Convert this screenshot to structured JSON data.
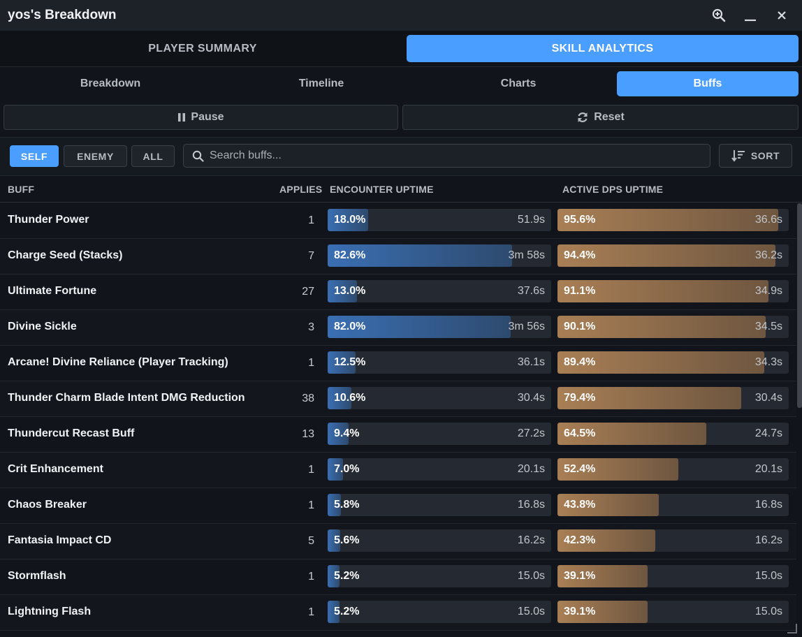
{
  "window": {
    "title": "yos's Breakdown"
  },
  "main_tabs": [
    {
      "label": "PLAYER SUMMARY",
      "active": false
    },
    {
      "label": "SKILL ANALYTICS",
      "active": true
    }
  ],
  "sub_tabs": [
    {
      "label": "Breakdown",
      "active": false
    },
    {
      "label": "Timeline",
      "active": false
    },
    {
      "label": "Charts",
      "active": false
    },
    {
      "label": "Buffs",
      "active": true
    }
  ],
  "controls": {
    "pause_label": "Pause",
    "reset_label": "Reset"
  },
  "filters": [
    {
      "label": "SELF",
      "active": true
    },
    {
      "label": "ENEMY",
      "active": false
    },
    {
      "label": "ALL",
      "active": false
    }
  ],
  "search": {
    "placeholder": "Search buffs...",
    "value": ""
  },
  "sort": {
    "label": "SORT"
  },
  "columns": {
    "buff": "BUFF",
    "applies": "APPLIES",
    "encounter": "ENCOUNTER UPTIME",
    "active": "ACTIVE DPS UPTIME"
  },
  "colors": {
    "accent": "#4a9eff",
    "encounter_bar": "#3a6fb3",
    "active_bar": "#a97f55",
    "background": "#11151b"
  },
  "icons": {
    "zoom": "zoom-in-icon",
    "minimize": "minimize-icon",
    "close": "close-icon",
    "pause": "pause-icon",
    "reset": "refresh-icon",
    "search": "search-icon",
    "sort": "sort-icon"
  },
  "buffs": [
    {
      "name": "Thunder Power",
      "applies": "1",
      "enc_pct": "18.0%",
      "enc_time": "51.9s",
      "act_pct": "95.6%",
      "act_time": "36.6s"
    },
    {
      "name": "Charge Seed (Stacks)",
      "applies": "7",
      "enc_pct": "82.6%",
      "enc_time": "3m 58s",
      "act_pct": "94.4%",
      "act_time": "36.2s"
    },
    {
      "name": "Ultimate Fortune",
      "applies": "27",
      "enc_pct": "13.0%",
      "enc_time": "37.6s",
      "act_pct": "91.1%",
      "act_time": "34.9s"
    },
    {
      "name": "Divine Sickle",
      "applies": "3",
      "enc_pct": "82.0%",
      "enc_time": "3m 56s",
      "act_pct": "90.1%",
      "act_time": "34.5s"
    },
    {
      "name": "Arcane! Divine Reliance (Player Tracking)",
      "applies": "1",
      "enc_pct": "12.5%",
      "enc_time": "36.1s",
      "act_pct": "89.4%",
      "act_time": "34.3s"
    },
    {
      "name": "Thunder Charm Blade Intent DMG Reduction",
      "applies": "38",
      "enc_pct": "10.6%",
      "enc_time": "30.4s",
      "act_pct": "79.4%",
      "act_time": "30.4s"
    },
    {
      "name": "Thundercut Recast Buff",
      "applies": "13",
      "enc_pct": "9.4%",
      "enc_time": "27.2s",
      "act_pct": "64.5%",
      "act_time": "24.7s"
    },
    {
      "name": "Crit Enhancement",
      "applies": "1",
      "enc_pct": "7.0%",
      "enc_time": "20.1s",
      "act_pct": "52.4%",
      "act_time": "20.1s"
    },
    {
      "name": "Chaos Breaker",
      "applies": "1",
      "enc_pct": "5.8%",
      "enc_time": "16.8s",
      "act_pct": "43.8%",
      "act_time": "16.8s"
    },
    {
      "name": "Fantasia Impact CD",
      "applies": "5",
      "enc_pct": "5.6%",
      "enc_time": "16.2s",
      "act_pct": "42.3%",
      "act_time": "16.2s"
    },
    {
      "name": "Stormflash",
      "applies": "1",
      "enc_pct": "5.2%",
      "enc_time": "15.0s",
      "act_pct": "39.1%",
      "act_time": "15.0s"
    },
    {
      "name": "Lightning Flash",
      "applies": "1",
      "enc_pct": "5.2%",
      "enc_time": "15.0s",
      "act_pct": "39.1%",
      "act_time": "15.0s"
    }
  ]
}
